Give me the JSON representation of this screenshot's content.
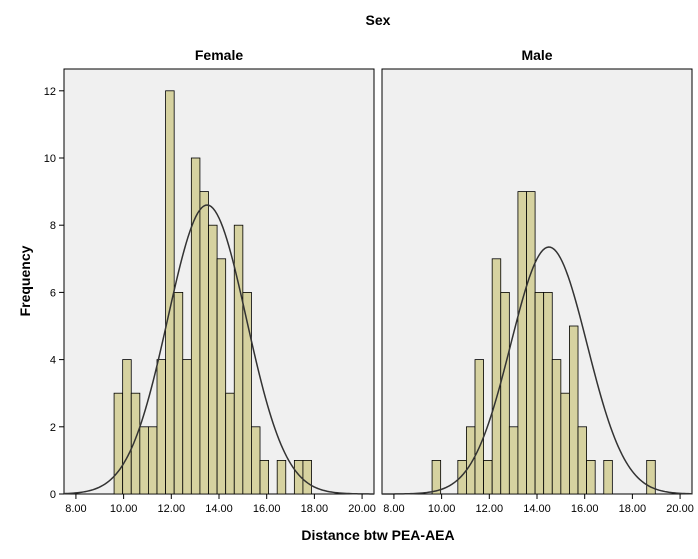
{
  "chart_data": {
    "type": "histogram",
    "title": "Sex",
    "xlabel": "Distance btw PEA-AEA",
    "ylabel": "Frequency",
    "xlim": [
      7.5,
      20.5
    ],
    "ylim": [
      0,
      12.6
    ],
    "x_ticks": [
      "8.00",
      "10.00",
      "12.00",
      "14.00",
      "16.00",
      "18.00",
      "20.00"
    ],
    "x_tick_values": [
      8,
      10,
      12,
      14,
      16,
      18,
      20
    ],
    "y_ticks": [
      "0",
      "2",
      "4",
      "6",
      "8",
      "10",
      "12"
    ],
    "y_tick_values": [
      0,
      2,
      4,
      6,
      8,
      10,
      12
    ],
    "bin_width": 0.36,
    "bar_color": "#d6d2a0",
    "panels": [
      {
        "name": "Female",
        "label": "Female",
        "bin_start": 9.6,
        "counts": [
          3,
          4,
          3,
          2,
          2,
          4,
          12,
          6,
          4,
          10,
          9,
          8,
          7,
          3,
          8,
          6,
          2,
          1,
          0,
          1,
          0,
          1,
          1
        ],
        "normal_mean": 13.5,
        "normal_peak": 8.6,
        "normal_sd": 1.65
      },
      {
        "name": "Male",
        "label": "Male",
        "bin_start": 9.6,
        "counts": [
          1,
          0,
          0,
          1,
          2,
          4,
          1,
          7,
          6,
          2,
          9,
          9,
          6,
          6,
          4,
          3,
          5,
          2,
          1,
          0,
          1,
          0,
          0,
          0,
          0,
          1
        ],
        "normal_mean": 14.5,
        "normal_peak": 7.35,
        "normal_sd": 1.6
      }
    ]
  }
}
